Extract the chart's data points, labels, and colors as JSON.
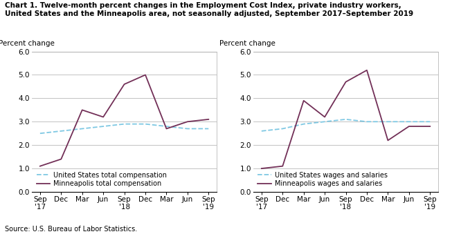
{
  "title_line1": "Chart 1. Twelve-month percent changes in the Employment Cost Index, private industry workers,",
  "title_line2": "United States and the Minneapolis area, not seasonally adjusted, September 2017–September 2019",
  "source": "Source: U.S. Bureau of Labor Statistics.",
  "ylabel": "Percent change",
  "xlabels": [
    "Sep\n'17",
    "Dec",
    "Mar",
    "Jun",
    "Sep\n'18",
    "Dec",
    "Mar",
    "Jun",
    "Sep\n'19"
  ],
  "ylim": [
    0.0,
    6.0
  ],
  "yticks": [
    0.0,
    1.0,
    2.0,
    3.0,
    4.0,
    5.0,
    6.0
  ],
  "left_us_values": [
    2.5,
    2.6,
    2.7,
    2.8,
    2.9,
    2.9,
    2.8,
    2.7,
    2.7
  ],
  "left_mpls_values": [
    1.1,
    1.4,
    3.5,
    3.2,
    4.6,
    5.0,
    2.7,
    3.0,
    3.1
  ],
  "right_us_values": [
    2.6,
    2.7,
    2.9,
    3.0,
    3.1,
    3.0,
    3.0,
    3.0,
    3.0
  ],
  "right_mpls_values": [
    1.0,
    1.1,
    3.9,
    3.2,
    4.7,
    5.2,
    2.2,
    2.8,
    2.8
  ],
  "us_color": "#7EC8E3",
  "mpls_color": "#722F57",
  "left_legend_us": "United States total compensation",
  "left_legend_mpls": "Minneapolis total compensation",
  "right_legend_us": "United States wages and salaries",
  "right_legend_mpls": "Minneapolis wages and salaries",
  "title_fontsize": 7.5,
  "axis_label_fontsize": 7.5,
  "tick_fontsize": 7.5,
  "legend_fontsize": 7.0,
  "source_fontsize": 7.0
}
